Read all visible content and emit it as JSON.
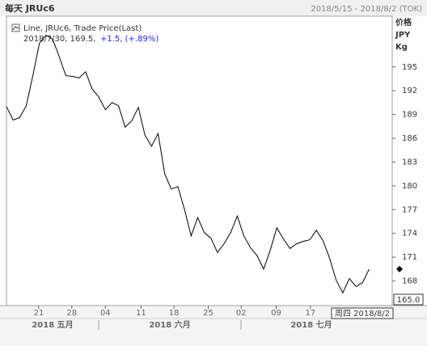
{
  "chart_data": {
    "type": "line",
    "title": "每天 JRUc6",
    "date_range": "2018/5/15 - 2018/8/2 (TOK)",
    "legend_title": "Line, JRUc6, Trade Price(Last)",
    "legend_info": "2018/7/30, 169.5,",
    "legend_change": "+1.5, (+.89%)",
    "y_axis_units": [
      "价格",
      "JPY",
      "Kg"
    ],
    "months": [
      "2018 五月",
      "2018 六月",
      "2018 七月"
    ],
    "cursor_value": "165.0",
    "cursor_date": "周四 2018/8/2",
    "series": [
      {
        "name": "JRUc6",
        "color": "#000000",
        "values": [
          190.0,
          188.3,
          188.6,
          190.1,
          193.9,
          198.0,
          199.0,
          198.5,
          196.3,
          193.9,
          193.8,
          193.6,
          194.4,
          192.2,
          191.2,
          189.6,
          190.5,
          190.1,
          187.4,
          188.2,
          189.9,
          186.4,
          185.0,
          186.6,
          181.5,
          179.6,
          179.9,
          177.0,
          173.7,
          176.0,
          174.1,
          173.4,
          171.6,
          172.7,
          174.1,
          176.2,
          173.7,
          172.2,
          171.2,
          169.5,
          171.9,
          174.7,
          173.3,
          172.1,
          172.7,
          173.0,
          173.2,
          174.4,
          173.1,
          170.9,
          168.1,
          166.5,
          168.3,
          167.3,
          167.8,
          169.5
        ]
      }
    ],
    "xlim": [
      0,
      58.5
    ],
    "xticks": [
      {
        "value": 4.9,
        "label": "21"
      },
      {
        "value": 9.9,
        "label": "28"
      },
      {
        "value": 15.0,
        "label": "04"
      },
      {
        "value": 20.4,
        "label": "11"
      },
      {
        "value": 25.4,
        "label": "18"
      },
      {
        "value": 30.6,
        "label": "25"
      },
      {
        "value": 35.6,
        "label": "02"
      },
      {
        "value": 40.9,
        "label": "09"
      },
      {
        "value": 46.1,
        "label": "17"
      }
    ],
    "ylim": [
      164.9,
      201.4
    ],
    "yticks": [
      168,
      171,
      174,
      177,
      180,
      183,
      186,
      189,
      192,
      195
    ],
    "grid": false
  }
}
